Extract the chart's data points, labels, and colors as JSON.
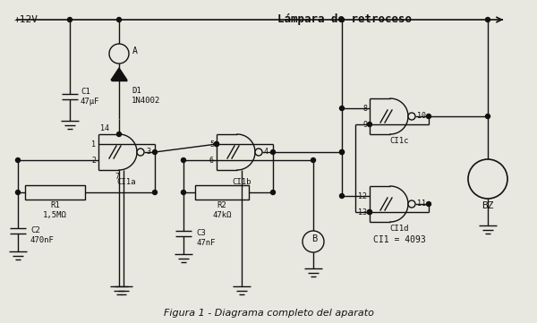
{
  "bg_color": "#e8e8e0",
  "line_color": "#111111",
  "text_color": "#111111",
  "title": "Figura 1 - Diagrama completo del aparato",
  "power_label": "+12V",
  "lamp_label": "Lámpara de retroceso",
  "C1_label": "C1\n47μF",
  "D1_label": "D1\n1N4002",
  "A_label": "A",
  "R1_label": "R1\n1,5MΩ",
  "C2_label": "C2\n470nF",
  "R2_label": "R2\n47kΩ",
  "C3_label": "C3\n47nF",
  "B_label": "B",
  "CI1a_label": "CI1a",
  "CI1b_label": "CI1b",
  "CI1c_label": "CI1c",
  "CI1d_label": "CI1d",
  "CI1eq_label": "CI1 = 4093",
  "BZ_label": "BZ",
  "pins": {
    "p1": "1",
    "p2": "2",
    "p3": "3",
    "p7": "7",
    "p14": "14",
    "p4": "4",
    "p5": "5",
    "p6": "6",
    "p8": "8",
    "p9": "9",
    "p10": "10",
    "p11": "11",
    "p12": "12",
    "p13": "13"
  }
}
